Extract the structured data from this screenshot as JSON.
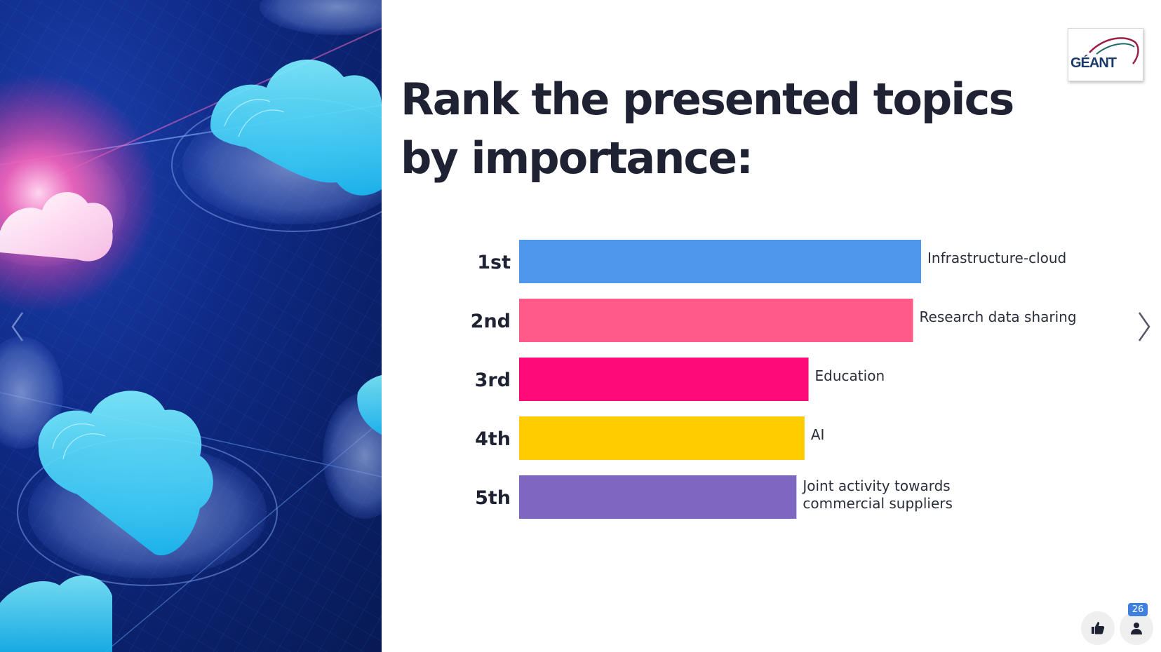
{
  "slide": {
    "title": "Rank the presented topics by importance:",
    "logo_text": "GÉANT"
  },
  "chart_data": {
    "type": "bar",
    "orientation": "horizontal",
    "title": "",
    "categories": [
      "1st",
      "2nd",
      "3rd",
      "4th",
      "5th"
    ],
    "items": [
      {
        "rank": "1st",
        "label": "Infrastructure-cloud",
        "value": 100,
        "color": "#4e97ed"
      },
      {
        "rank": "2nd",
        "label": "Research data sharing",
        "value": 98,
        "color": "#ff5a88"
      },
      {
        "rank": "3rd",
        "label": "Education",
        "value": 72,
        "color": "#ff0a77"
      },
      {
        "rank": "4th",
        "label": "AI",
        "value": 71,
        "color": "#ffcc00"
      },
      {
        "rank": "5th",
        "label": "Joint activity towards commercial suppliers",
        "value": 69,
        "color": "#7e68bf"
      }
    ],
    "label_lines": {
      "5th": [
        "Joint activity towards",
        "commercial suppliers"
      ]
    },
    "grid": false,
    "legend": "none"
  },
  "controls": {
    "participant_count": "26",
    "like_icon": "thumbs-up-icon",
    "participants_icon": "person-icon"
  },
  "colors": {
    "title": "#1e2232",
    "badge": "#3f7fde",
    "panel": "#0e2a85"
  }
}
